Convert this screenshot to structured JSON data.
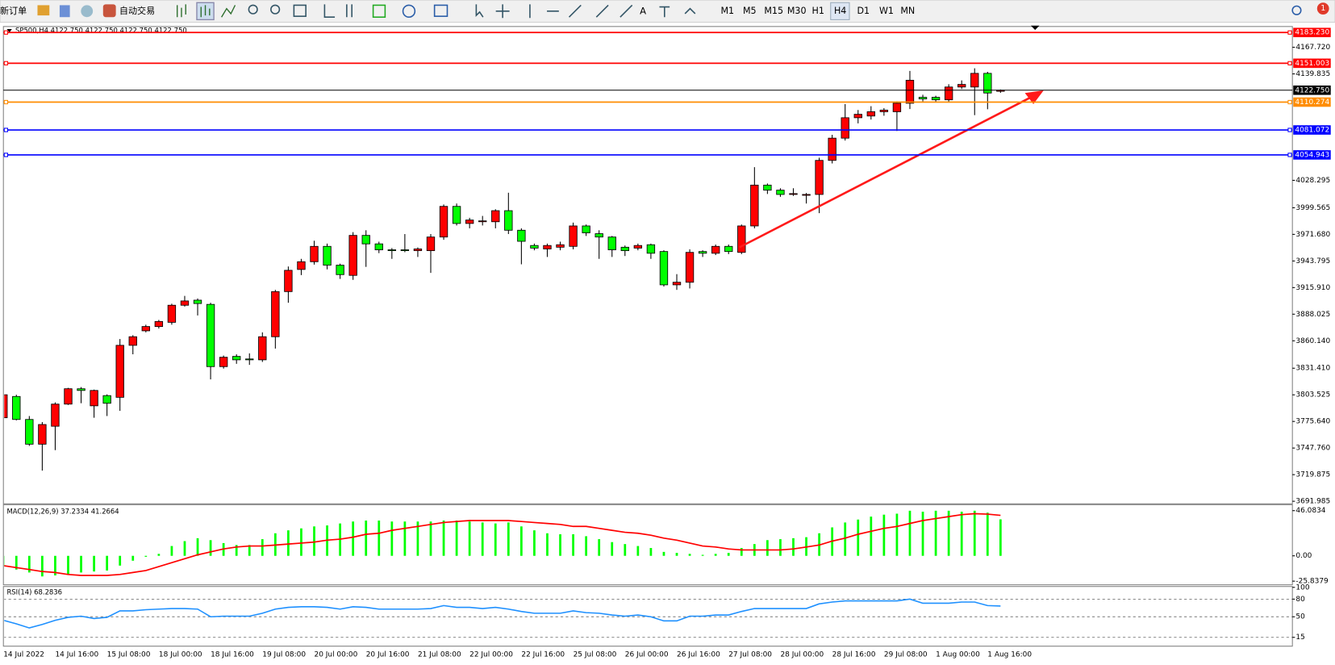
{
  "toolbar": {
    "new_order": "新订单",
    "auto_trading": "自动交易",
    "timeframes": [
      "M1",
      "M5",
      "M15",
      "M30",
      "H1",
      "H4",
      "D1",
      "W1",
      "MN"
    ],
    "alert_count": 1
  },
  "chart_data": [
    {
      "type": "candlestick",
      "title": "SP500,H4 4122.750 4122.750 4122.750 4122.750",
      "categories": [
        "14 Jul 2022",
        null,
        null,
        null,
        "14 Jul 16:00",
        null,
        null,
        null,
        "15 Jul 08:00",
        null,
        null,
        null,
        "18 Jul 00:00",
        null,
        null,
        null,
        "18 Jul 16:00",
        null,
        null,
        null,
        "19 Jul 08:00",
        null,
        null,
        null,
        "20 Jul 00:00",
        null,
        null,
        null,
        "20 Jul 16:00",
        null,
        null,
        null,
        "21 Jul 08:00",
        null,
        null,
        null,
        "22 Jul 00:00",
        null,
        null,
        null,
        "22 Jul 16:00",
        null,
        null,
        null,
        "25 Jul 08:00",
        null,
        null,
        null,
        "26 Jul 00:00",
        null,
        null,
        null,
        "26 Jul 16:00",
        null,
        null,
        null,
        "27 Jul 08:00",
        null,
        null,
        null,
        "28 Jul 00:00",
        null,
        null,
        null,
        "28 Jul 16:00",
        null,
        null,
        null,
        "29 Jul 08:00",
        null,
        null,
        null,
        "1 Aug 00:00",
        null,
        null,
        null,
        "1 Aug 16:00",
        null
      ],
      "open": [
        3779.5,
        3801.8,
        3777.7,
        3751.8,
        3770.6,
        3793.8,
        3809.9,
        3792.0,
        3802.7,
        3800.9,
        3855.4,
        3870.6,
        3875.1,
        3879.5,
        3897.4,
        3902.7,
        3898.3,
        3833.1,
        3843.8,
        3841.1,
        3840.2,
        3864.4,
        3911.7,
        3934.9,
        3943.0,
        3959.1,
        3939.4,
        3928.7,
        3970.6,
        3961.7,
        3955.5,
        3955.5,
        3954.6,
        3954.6,
        3968.9,
        4001.0,
        3983.1,
        3985.8,
        3984.9,
        3996.5,
        3976.0,
        3960.0,
        3956.4,
        3958.2,
        3959.1,
        3980.5,
        3972.4,
        3968.9,
        3958.2,
        3957.3,
        3960.8,
        3953.7,
        3918.8,
        3921.5,
        3953.7,
        3951.9,
        3959.1,
        3952.8,
        3980.5,
        4023.3,
        4018.0,
        4014.4,
        4012.6,
        4013.5,
        4049.2,
        4072.5,
        4093.9,
        4095.7,
        4100.2,
        4100.2,
        4109.1,
        4115.3,
        4115.3,
        4112.7,
        4126.1,
        4126.1,
        4140.4,
        4121.6
      ],
      "high": [
        3805.4,
        3803.6,
        3781.3,
        3775.0,
        3795.6,
        3810.8,
        3811.6,
        3809.0,
        3804.0,
        3862.0,
        3866.0,
        3877.0,
        3882.0,
        3899.0,
        3907.2,
        3904.5,
        3900.0,
        3844.7,
        3846.0,
        3847.0,
        3869.0,
        3913.5,
        3938.0,
        3946.0,
        3965.0,
        3962.0,
        3941.0,
        3974.0,
        3976.0,
        3964.0,
        3957.3,
        3972.0,
        3958.0,
        3972.0,
        4003.0,
        4004.0,
        3989.0,
        3991.0,
        3998.0,
        4015.3,
        3978.0,
        3962.0,
        3962.0,
        3964.0,
        3984.0,
        3982.0,
        3976.0,
        3970.0,
        3960.0,
        3962.0,
        3962.0,
        3955.0,
        3930.0,
        3956.0,
        3955.0,
        3961.0,
        3961.0,
        3982.0,
        4042.1,
        4025.0,
        4020.0,
        4020.0,
        4015.0,
        4052.0,
        4076.0,
        4108.2,
        4102.0,
        4106.0,
        4104.0,
        4111.0,
        4143.0,
        4118.0,
        4117.0,
        4129.0,
        4133.0,
        4145.7,
        4142.0,
        4123.5
      ],
      "low": [
        3777.7,
        3776.8,
        3750.0,
        3724.1,
        3745.6,
        3792.9,
        3794.7,
        3779.5,
        3781.3,
        3786.7,
        3846.0,
        3869.0,
        3873.0,
        3877.0,
        3896.0,
        3886.7,
        3819.7,
        3831.0,
        3836.0,
        3834.9,
        3838.0,
        3852.0,
        3900.0,
        3929.0,
        3940.0,
        3935.0,
        3925.0,
        3924.0,
        3937.6,
        3952.0,
        3946.0,
        3953.0,
        3948.0,
        3931.3,
        3966.0,
        3981.0,
        3978.0,
        3981.0,
        3978.0,
        3972.0,
        3940.3,
        3955.0,
        3948.0,
        3955.0,
        3956.0,
        3970.0,
        3946.0,
        3948.0,
        3949.0,
        3955.0,
        3946.0,
        3917.0,
        3913.5,
        3915.0,
        3948.0,
        3950.0,
        3951.0,
        3951.0,
        3978.0,
        4014.0,
        4011.0,
        4012.0,
        4004.0,
        3993.9,
        4046.0,
        4070.0,
        4088.0,
        4092.0,
        4096.0,
        4080.0,
        4103.0,
        4111.0,
        4110.0,
        4110.0,
        4124.0,
        4096.6,
        4102.8,
        4120.0
      ],
      "close": [
        3803.6,
        3777.7,
        3751.8,
        3772.4,
        3793.8,
        3809.9,
        3808.1,
        3808.1,
        3794.7,
        3855.4,
        3864.4,
        3875.1,
        3880.4,
        3897.4,
        3901.9,
        3899.2,
        3833.1,
        3842.9,
        3840.2,
        3840.2,
        3864.4,
        3911.7,
        3934.0,
        3943.0,
        3959.1,
        3939.4,
        3929.5,
        3970.6,
        3961.7,
        3955.5,
        3954.6,
        3954.6,
        3956.4,
        3968.9,
        4001.0,
        3983.1,
        3986.7,
        3985.8,
        3996.5,
        3976.0,
        3964.4,
        3957.3,
        3960.0,
        3960.8,
        3980.5,
        3973.3,
        3968.9,
        3955.5,
        3954.6,
        3960.0,
        3951.9,
        3918.8,
        3921.5,
        3952.8,
        3951.9,
        3959.1,
        3953.7,
        3980.5,
        4023.3,
        4018.0,
        4013.5,
        4014.4,
        4013.5,
        4049.2,
        4072.5,
        4093.9,
        4097.5,
        4100.2,
        4101.9,
        4109.1,
        4133.2,
        4113.6,
        4112.7,
        4126.1,
        4128.8,
        4140.4,
        4119.8,
        4122.75
      ],
      "up_color": "#ff0000",
      "down_color": "#00ff00",
      "ylim": [
        3689.3,
        4189.5
      ],
      "yticks": [
        {
          "value": 4167.72,
          "label": "4167.720"
        },
        4139.835,
        4028.295,
        3999.565,
        {
          "value": 3971.68,
          "label": "3971.680"
        },
        3943.795,
        {
          "value": 3915.91,
          "label": "3915.910"
        },
        3888.025,
        {
          "value": 3860.14,
          "label": "3860.140"
        },
        {
          "value": 3831.41,
          "label": "3831.410"
        },
        3803.525,
        {
          "value": 3775.64,
          "label": "3775.640"
        },
        {
          "value": 3747.76,
          "label": "3747.760"
        },
        3719.875,
        3691.985
      ],
      "levels": [
        {
          "value": 4183.23,
          "label": "4183.230",
          "color": "#ff0000"
        },
        {
          "value": 4151.003,
          "label": "4151.003",
          "color": "#ff0000"
        },
        {
          "value": 4122.75,
          "label": "4122.750",
          "color": "#000000"
        },
        {
          "value": 4110.274,
          "label": "4110.274",
          "color": "#ff8c00"
        },
        {
          "value": 4081.072,
          "label": "4081.072",
          "color": "#0000ff"
        },
        {
          "value": 4054.943,
          "label": "4054.943",
          "color": "#0000ff"
        }
      ]
    },
    {
      "type": "macd",
      "title": "MACD(12,26,9) 37.2334 41.2664",
      "histogram": {
        "color": "#00ff00",
        "values": [
          -11,
          -14,
          -17,
          -21,
          -20,
          -19,
          -17,
          -16,
          -15,
          -10,
          -5,
          -1,
          2,
          10,
          15,
          18,
          16,
          13,
          11,
          11,
          17,
          23,
          26,
          28,
          30,
          31,
          33,
          35,
          36,
          36,
          35,
          35,
          35,
          35,
          36,
          36,
          35,
          34,
          33,
          34,
          30,
          26,
          23,
          22,
          22,
          20,
          17,
          14,
          12,
          10,
          8,
          4,
          3,
          2,
          1,
          2,
          3,
          8,
          12,
          16,
          17,
          18,
          19,
          23,
          29,
          34,
          37,
          40,
          42,
          43,
          46,
          45,
          46,
          46,
          45,
          46,
          44,
          37.2334
        ]
      },
      "signal": {
        "color": "#ff0000",
        "values": [
          -10,
          -12,
          -14,
          -16,
          -17,
          -19,
          -20,
          -20,
          -20,
          -19,
          -17,
          -15,
          -11,
          -7,
          -3,
          1,
          4,
          7,
          9,
          10,
          10,
          11,
          12,
          13,
          14,
          16,
          17,
          19,
          22,
          23,
          26,
          28,
          30,
          32,
          34,
          35,
          36,
          36,
          36,
          36,
          35,
          34,
          33,
          32,
          30,
          30,
          28,
          26,
          24,
          23,
          21,
          18,
          16,
          13,
          10,
          9,
          7,
          6,
          6,
          6,
          6,
          7,
          9,
          11,
          15,
          18,
          22,
          25,
          28,
          30,
          33,
          36,
          38,
          40,
          42,
          43,
          42.5,
          41.2664
        ]
      },
      "ylim": [
        -29.56,
        52.17
      ],
      "yticks": [
        46.0834,
        {
          "value": 0,
          "label": "0.00"
        },
        -25.8379
      ]
    },
    {
      "type": "line",
      "title": "RSI(14) 68.2836",
      "color": "#1e90ff",
      "values": [
        44,
        38,
        31,
        37,
        44,
        49,
        51,
        47,
        49,
        60,
        60,
        62,
        63,
        64,
        64,
        63,
        50,
        51,
        51,
        51,
        56,
        63,
        66,
        67,
        67,
        66,
        63,
        67,
        66,
        63,
        63,
        63,
        63,
        64,
        69,
        66,
        66,
        64,
        66,
        63,
        59,
        56,
        56,
        56,
        60,
        57,
        56,
        53,
        51,
        53,
        50,
        43,
        43,
        51,
        51,
        53,
        53,
        59,
        64,
        64,
        64,
        64,
        64,
        72,
        75,
        77,
        77,
        77,
        77,
        77,
        80,
        73,
        73,
        73,
        75,
        75,
        69,
        68.2836
      ],
      "ylim": [
        0,
        100
      ],
      "yticks": [
        100,
        80,
        50,
        15
      ],
      "levels": [
        80,
        50,
        15
      ]
    }
  ]
}
